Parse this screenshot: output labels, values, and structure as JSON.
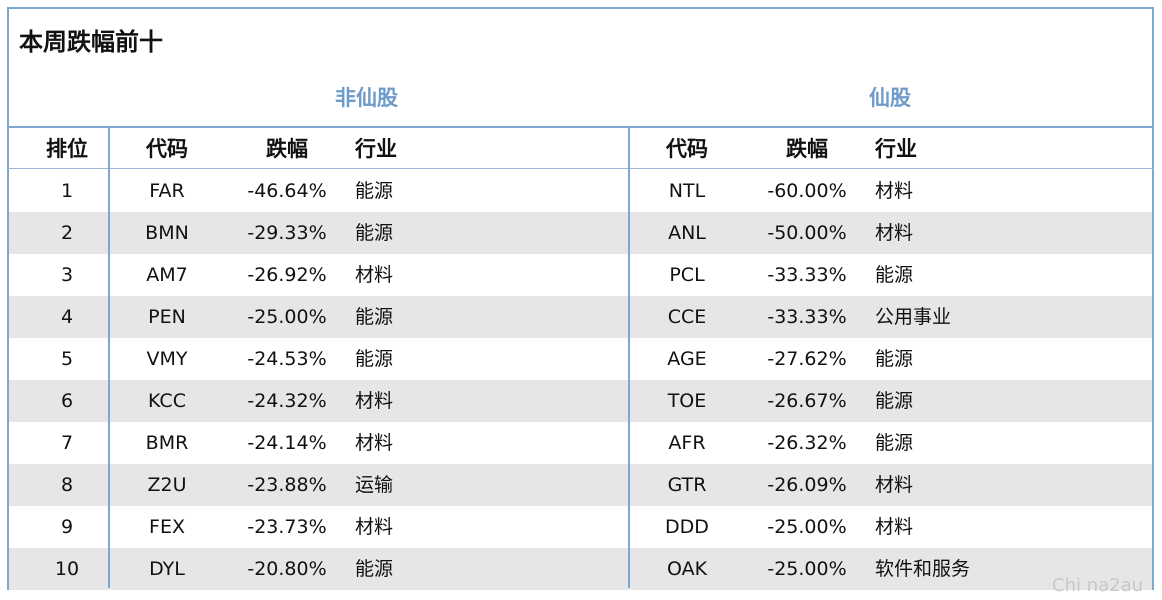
{
  "title": "本周跌幅前十",
  "groups": {
    "non_fairy": "非仙股",
    "fairy": "仙股"
  },
  "headers": {
    "rank": "排位",
    "code": "代码",
    "change": "跌幅",
    "industry": "行业"
  },
  "rows": [
    {
      "rank": "1",
      "code1": "FAR",
      "pct1": "-46.64%",
      "ind1": "能源",
      "code2": "NTL",
      "pct2": "-60.00%",
      "ind2": "材料"
    },
    {
      "rank": "2",
      "code1": "BMN",
      "pct1": "-29.33%",
      "ind1": "能源",
      "code2": "ANL",
      "pct2": "-50.00%",
      "ind2": "材料"
    },
    {
      "rank": "3",
      "code1": "AM7",
      "pct1": "-26.92%",
      "ind1": "材料",
      "code2": "PCL",
      "pct2": "-33.33%",
      "ind2": "能源"
    },
    {
      "rank": "4",
      "code1": "PEN",
      "pct1": "-25.00%",
      "ind1": "能源",
      "code2": "CCE",
      "pct2": "-33.33%",
      "ind2": "公用事业"
    },
    {
      "rank": "5",
      "code1": "VMY",
      "pct1": "-24.53%",
      "ind1": "能源",
      "code2": "AGE",
      "pct2": "-27.62%",
      "ind2": "能源"
    },
    {
      "rank": "6",
      "code1": "KCC",
      "pct1": "-24.32%",
      "ind1": "材料",
      "code2": "TOE",
      "pct2": "-26.67%",
      "ind2": "能源"
    },
    {
      "rank": "7",
      "code1": "BMR",
      "pct1": "-24.14%",
      "ind1": "材料",
      "code2": "AFR",
      "pct2": "-26.32%",
      "ind2": "能源"
    },
    {
      "rank": "8",
      "code1": "Z2U",
      "pct1": "-23.88%",
      "ind1": "运输",
      "code2": "GTR",
      "pct2": "-26.09%",
      "ind2": "材料"
    },
    {
      "rank": "9",
      "code1": "FEX",
      "pct1": "-23.73%",
      "ind1": "材料",
      "code2": "DDD",
      "pct2": "-25.00%",
      "ind2": "材料"
    },
    {
      "rank": "10",
      "code1": "DYL",
      "pct1": "-20.80%",
      "ind1": "能源",
      "code2": "OAK",
      "pct2": "-25.00%",
      "ind2": "软件和服务"
    }
  ],
  "watermark": "Chi na2au"
}
